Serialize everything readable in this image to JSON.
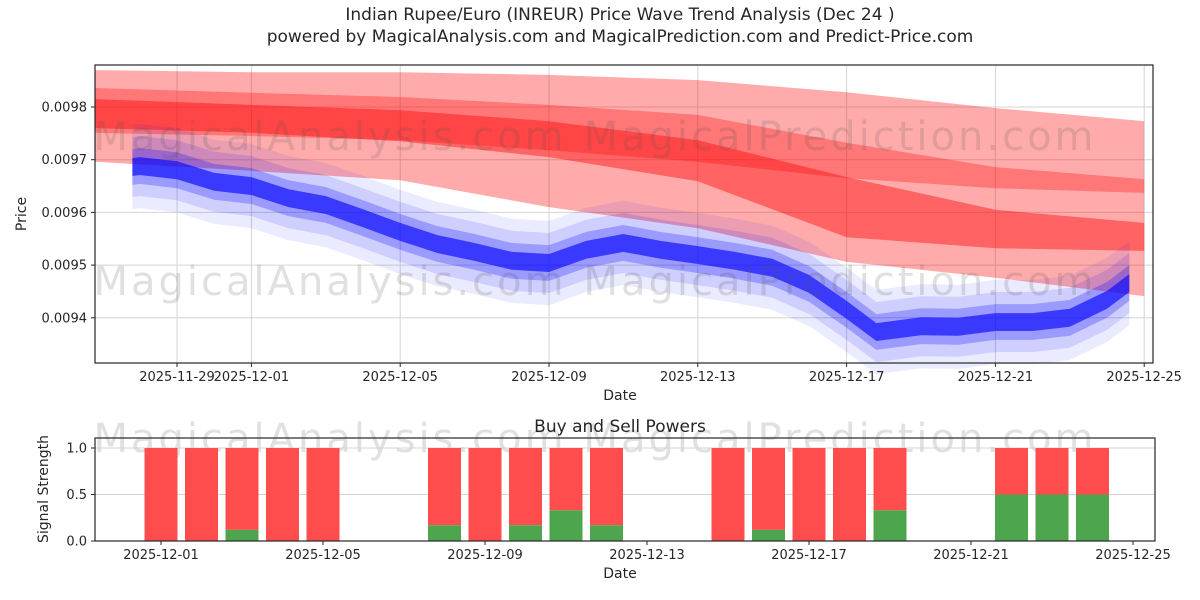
{
  "header": {
    "title_line1": "Indian Rupee/Euro (INREUR) Price Wave Trend Analysis (Dec 24 )",
    "title_line2": "powered by MagicalAnalysis.com and MagicalPrediction.com and Predict-Price.com"
  },
  "watermark": {
    "left_text": "MagicalAnalysis.com",
    "right_text": "MagicalPrediction.com"
  },
  "chart_data": [
    {
      "type": "area",
      "panel": "price-wave-trend",
      "xlabel": "Date",
      "ylabel": "Price",
      "grid": true,
      "day0": "2025-11-27",
      "xlim_days": [
        -0.2,
        28.2
      ],
      "ylim": [
        0.009315,
        0.00988
      ],
      "x_tick_labels": [
        "2025-11-29",
        "2025-12-01",
        "2025-12-05",
        "2025-12-09",
        "2025-12-13",
        "2025-12-17",
        "2025-12-21",
        "2025-12-25"
      ],
      "y_tick_labels": [
        "0.0098",
        "0.0097",
        "0.0096",
        "0.0095",
        "0.0094"
      ],
      "colors": {
        "red_band": "#ff0000",
        "blue_band": "#0000ff"
      },
      "red_bands": [
        {
          "name": "outer-prediction-band",
          "alpha": 0.33,
          "x": [
            -0.2,
            4,
            8,
            12,
            16,
            20,
            24,
            28
          ],
          "top": [
            0.00987,
            0.009866,
            0.009866,
            0.009861,
            0.009851,
            0.009828,
            0.009798,
            0.009773
          ],
          "bottom": [
            0.009696,
            0.009679,
            0.009661,
            0.00961,
            0.00957,
            0.009506,
            0.009476,
            0.009441
          ]
        },
        {
          "name": "mid-prediction-band",
          "alpha": 0.3,
          "x": [
            -0.2,
            4,
            8,
            12,
            16,
            20,
            24,
            28
          ],
          "top": [
            0.009836,
            0.009827,
            0.009819,
            0.009804,
            0.009785,
            0.009732,
            0.009686,
            0.009663
          ],
          "bottom": [
            0.009751,
            0.009745,
            0.009737,
            0.009718,
            0.009696,
            0.009665,
            0.009646,
            0.009637
          ]
        },
        {
          "name": "core-prediction-band",
          "alpha": 0.42,
          "x": [
            -0.2,
            4,
            8,
            12,
            16,
            20,
            24,
            28
          ],
          "top": [
            0.009815,
            0.009804,
            0.009794,
            0.009773,
            0.009737,
            0.009667,
            0.009605,
            0.00958
          ],
          "bottom": [
            0.00976,
            0.009751,
            0.009735,
            0.009705,
            0.009659,
            0.009553,
            0.009532,
            0.009527
          ]
        }
      ],
      "blue_band": {
        "name": "price-wave-band",
        "x": [
          0.8,
          1,
          2,
          3,
          4,
          5,
          6,
          7,
          8,
          9,
          10,
          11,
          12,
          13,
          14,
          15,
          16,
          17,
          18,
          19,
          20,
          20.8,
          22,
          23,
          24,
          25,
          26,
          27,
          27.6
        ],
        "center": [
          0.009686,
          0.009688,
          0.00968,
          0.009658,
          0.00965,
          0.009627,
          0.009614,
          0.009589,
          0.009563,
          0.00954,
          0.009525,
          0.009508,
          0.009504,
          0.009529,
          0.009542,
          0.009529,
          0.009519,
          0.009508,
          0.009495,
          0.009464,
          0.009415,
          0.009373,
          0.009384,
          0.009383,
          0.009392,
          0.009392,
          0.0094,
          0.009434,
          0.009466
        ],
        "layers": [
          {
            "alpha": 0.08,
            "half_width": 8e-05
          },
          {
            "alpha": 0.12,
            "half_width": 5.7e-05
          },
          {
            "alpha": 0.25,
            "half_width": 3.4e-05
          },
          {
            "alpha": 0.62,
            "half_width": 1.7e-05
          }
        ]
      }
    },
    {
      "type": "bar",
      "panel": "buy-sell-powers",
      "title": "Buy and Sell Powers",
      "xlabel": "Date",
      "ylabel": "Signal Strength",
      "stacked": true,
      "grid": true,
      "day0": "2025-11-27",
      "xlim_days": [
        2.37,
        28.6
      ],
      "ylim": [
        0,
        1.108
      ],
      "x_tick_labels": [
        "2025-12-01",
        "2025-12-05",
        "2025-12-09",
        "2025-12-13",
        "2025-12-17",
        "2025-12-21",
        "2025-12-25"
      ],
      "y_tick_labels": [
        "0.0",
        "0.5",
        "1.0"
      ],
      "colors": {
        "buy": "#4da64d",
        "sell": "#ff4d4d"
      },
      "bars": [
        {
          "date": "2025-12-01",
          "buy": 0.0,
          "sell": 1.0
        },
        {
          "date": "2025-12-02",
          "buy": 0.0,
          "sell": 1.0
        },
        {
          "date": "2025-12-03",
          "buy": 0.12,
          "sell": 0.88
        },
        {
          "date": "2025-12-04",
          "buy": 0.0,
          "sell": 1.0
        },
        {
          "date": "2025-12-05",
          "buy": 0.0,
          "sell": 1.0
        },
        {
          "date": "2025-12-08",
          "buy": 0.17,
          "sell": 0.83
        },
        {
          "date": "2025-12-09",
          "buy": 0.0,
          "sell": 1.0
        },
        {
          "date": "2025-12-10",
          "buy": 0.17,
          "sell": 0.83
        },
        {
          "date": "2025-12-11",
          "buy": 0.33,
          "sell": 0.67
        },
        {
          "date": "2025-12-12",
          "buy": 0.17,
          "sell": 0.83
        },
        {
          "date": "2025-12-15",
          "buy": 0.0,
          "sell": 1.0
        },
        {
          "date": "2025-12-16",
          "buy": 0.12,
          "sell": 0.88
        },
        {
          "date": "2025-12-17",
          "buy": 0.0,
          "sell": 1.0
        },
        {
          "date": "2025-12-18",
          "buy": 0.0,
          "sell": 1.0
        },
        {
          "date": "2025-12-19",
          "buy": 0.33,
          "sell": 0.67
        },
        {
          "date": "2025-12-22",
          "buy": 0.5,
          "sell": 0.5
        },
        {
          "date": "2025-12-23",
          "buy": 0.5,
          "sell": 0.5
        },
        {
          "date": "2025-12-24",
          "buy": 0.5,
          "sell": 0.5
        }
      ]
    }
  ]
}
